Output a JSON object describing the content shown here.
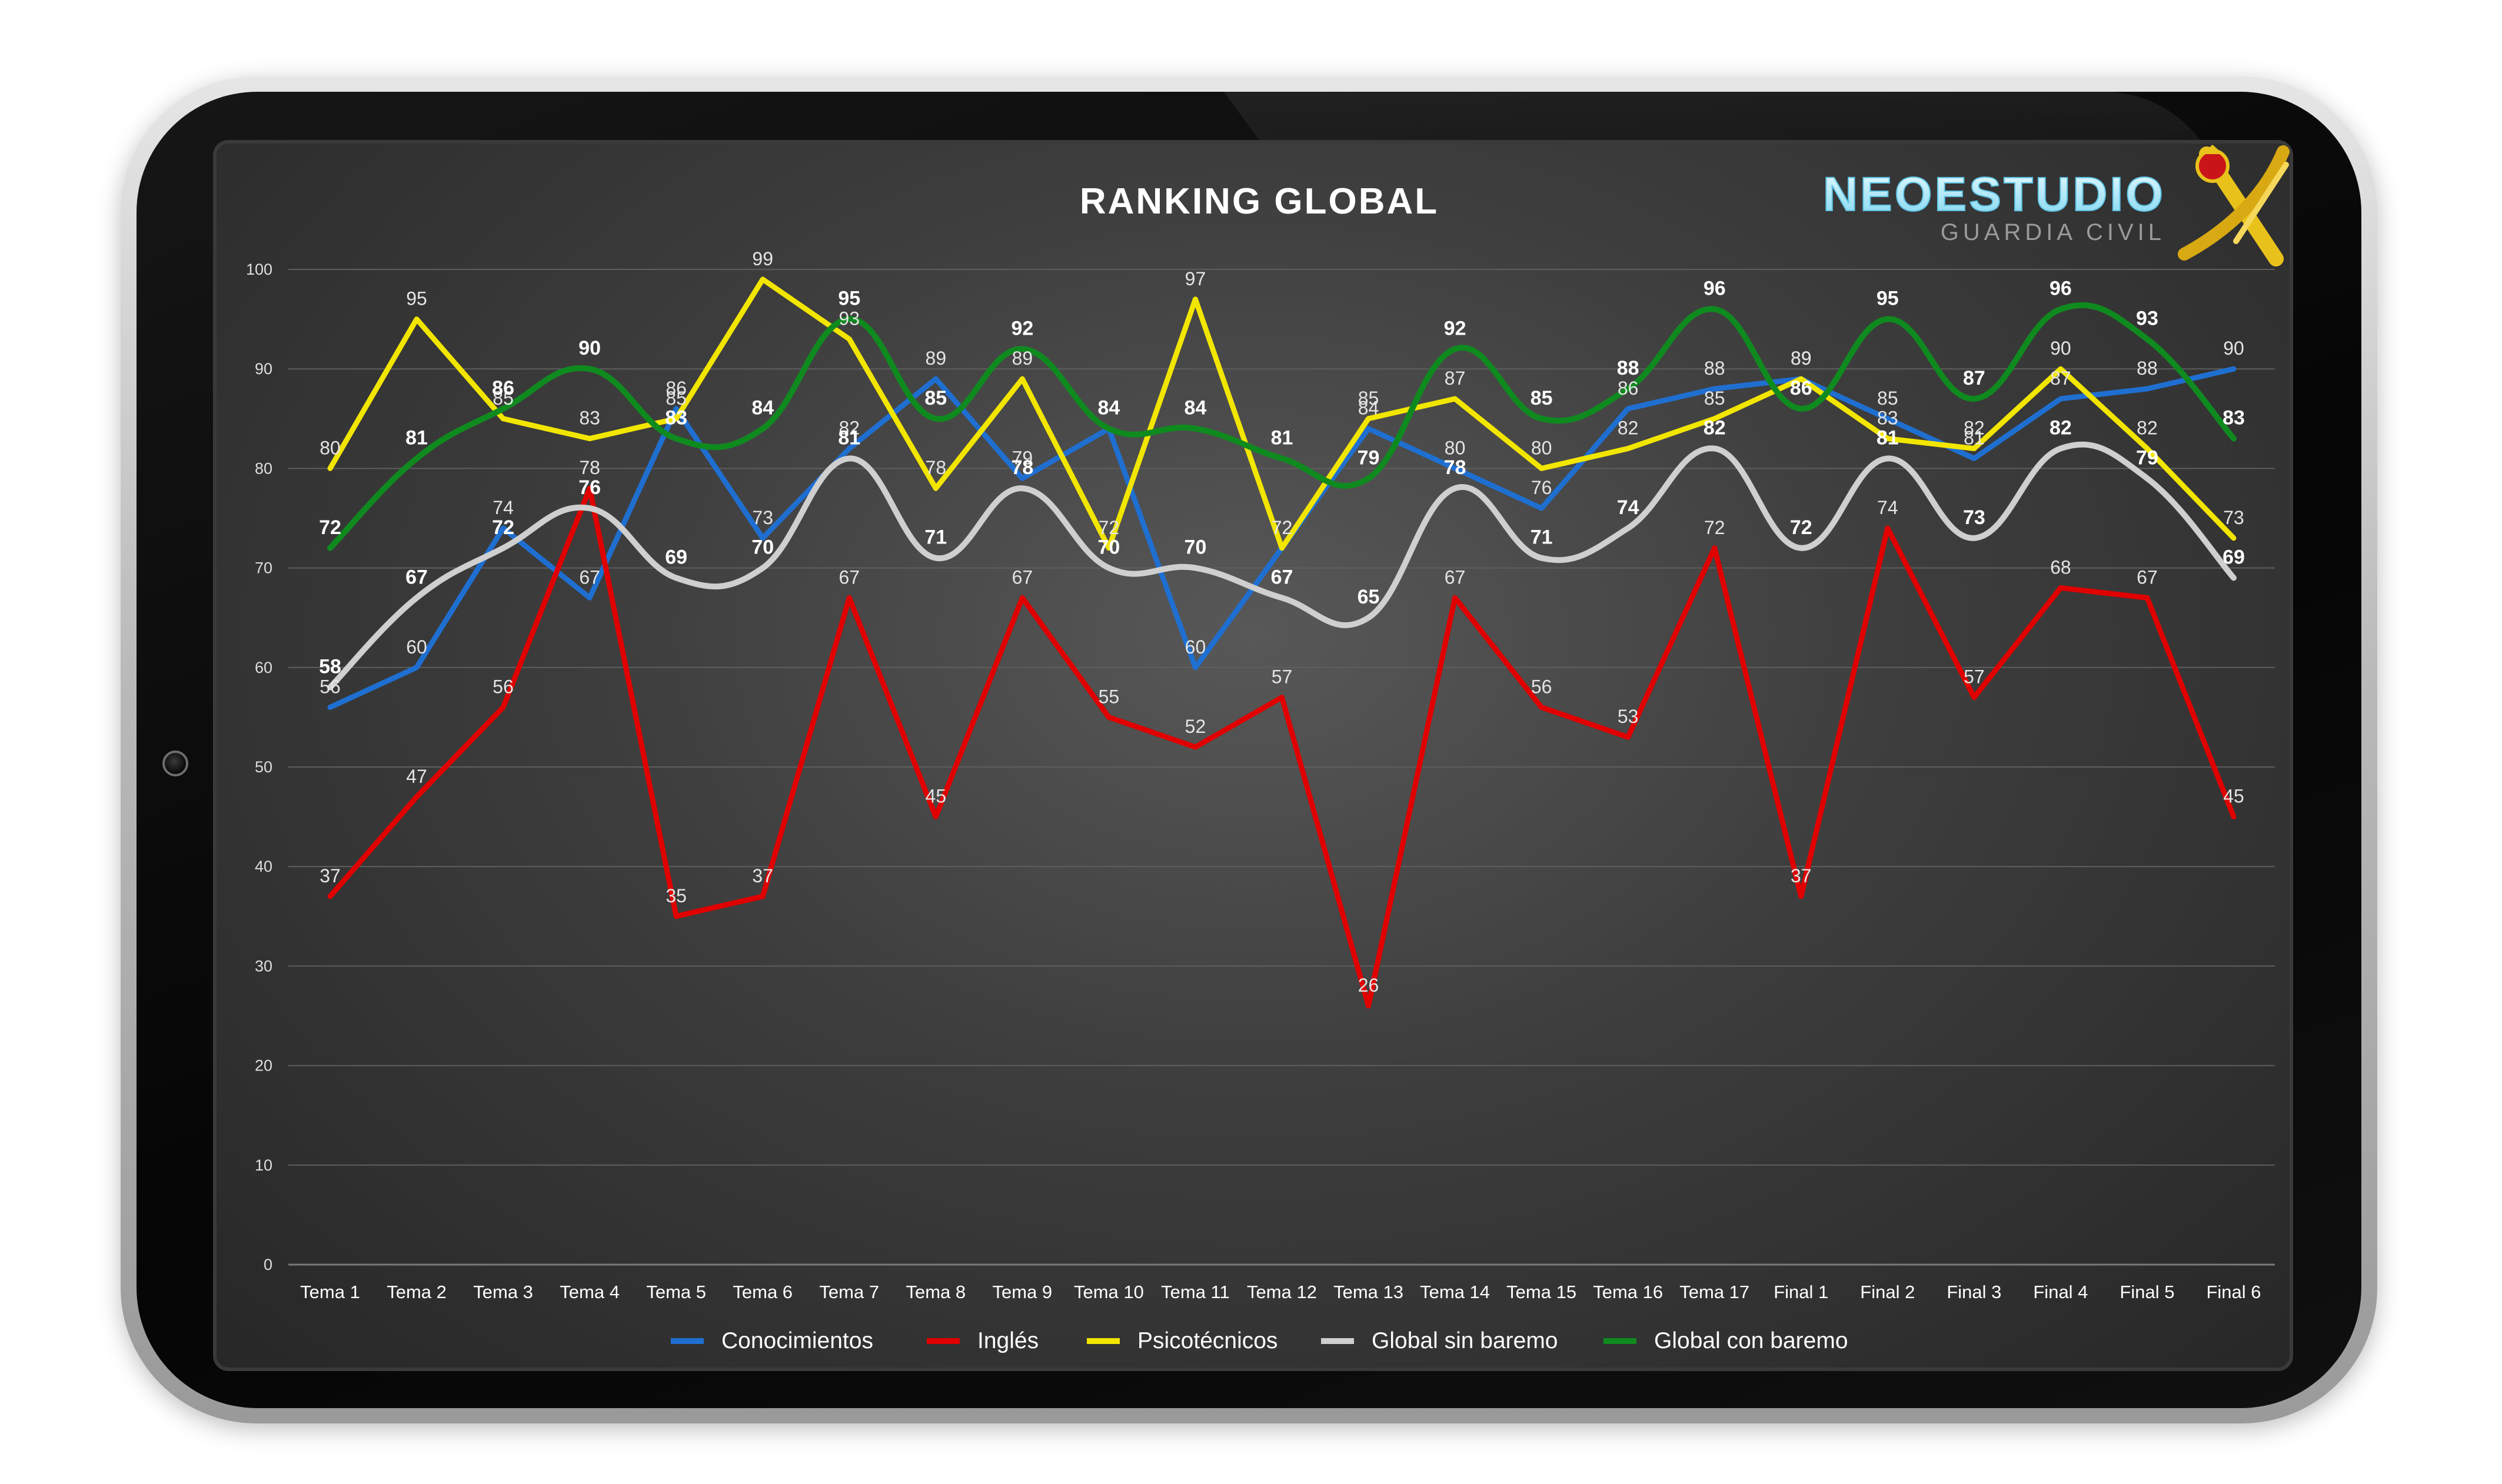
{
  "branding": {
    "name": "NEOESTUDIO",
    "subtitle": "GUARDIA CIVIL"
  },
  "chart_data": {
    "type": "line",
    "title": "RANKING GLOBAL",
    "xlabel": "",
    "ylabel": "",
    "ylim": [
      0,
      100
    ],
    "yticks": [
      0,
      10,
      20,
      30,
      40,
      50,
      60,
      70,
      80,
      90,
      100
    ],
    "grid": true,
    "legend_position": "bottom",
    "categories": [
      "Tema 1",
      "Tema 2",
      "Tema 3",
      "Tema 4",
      "Tema 5",
      "Tema 6",
      "Tema 7",
      "Tema 8",
      "Tema 9",
      "Tema 10",
      "Tema 11",
      "Tema 12",
      "Tema 13",
      "Tema 14",
      "Tema 15",
      "Tema 16",
      "Tema 17",
      "Final 1",
      "Final 2",
      "Final 3",
      "Final 4",
      "Final 5",
      "Final 6"
    ],
    "series": [
      {
        "name": "Conocimientos",
        "color": "#1f6fd1",
        "smooth": false,
        "bold_labels": false,
        "values": [
          56,
          60,
          74,
          67,
          86,
          73,
          82,
          89,
          79,
          84,
          60,
          72,
          84,
          80,
          76,
          86,
          88,
          89,
          85,
          81,
          87,
          88,
          90
        ]
      },
      {
        "name": "Inglés",
        "color": "#e00000",
        "smooth": false,
        "bold_labels": false,
        "values": [
          37,
          47,
          56,
          78,
          35,
          37,
          67,
          45,
          67,
          55,
          52,
          57,
          26,
          67,
          56,
          53,
          72,
          37,
          74,
          57,
          68,
          67,
          45
        ]
      },
      {
        "name": "Psicotécnicos",
        "color": "#f2e600",
        "smooth": false,
        "bold_labels": false,
        "values": [
          80,
          95,
          85,
          83,
          85,
          99,
          93,
          78,
          89,
          72,
          97,
          72,
          85,
          87,
          80,
          82,
          85,
          89,
          83,
          82,
          90,
          82,
          73
        ]
      },
      {
        "name": "Global sin baremo",
        "color": "#cfcfcf",
        "smooth": true,
        "bold_labels": true,
        "values": [
          58,
          67,
          72,
          76,
          69,
          70,
          81,
          71,
          78,
          70,
          70,
          67,
          65,
          78,
          71,
          74,
          82,
          72,
          81,
          73,
          82,
          79,
          69
        ]
      },
      {
        "name": "Global con baremo",
        "color": "#0f8a1f",
        "smooth": true,
        "bold_labels": true,
        "values": [
          72,
          81,
          86,
          90,
          83,
          84,
          95,
          85,
          92,
          84,
          84,
          81,
          79,
          92,
          85,
          88,
          96,
          86,
          95,
          87,
          96,
          93,
          83
        ]
      }
    ]
  }
}
